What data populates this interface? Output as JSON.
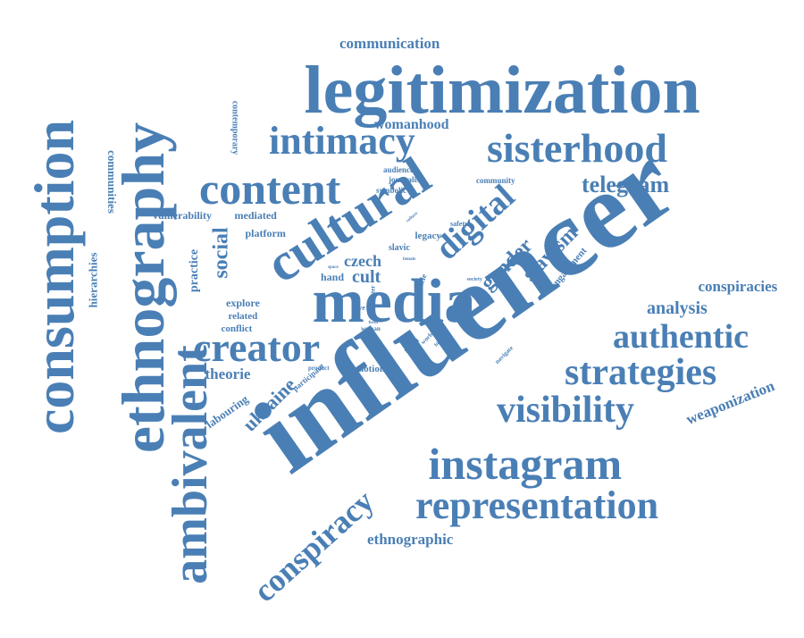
{
  "word_cloud": {
    "text_color": "#4a7fb5",
    "background": "#ffffff",
    "words": [
      {
        "text": "influencer",
        "weight": 1.0,
        "orientation": "diagonal-up"
      },
      {
        "text": "legitimization",
        "weight": 0.86,
        "orientation": "horizontal"
      },
      {
        "text": "media",
        "weight": 0.78,
        "orientation": "horizontal"
      },
      {
        "text": "ethnography",
        "weight": 0.76,
        "orientation": "vertical-up"
      },
      {
        "text": "consumption",
        "weight": 0.74,
        "orientation": "vertical-up"
      },
      {
        "text": "cultural",
        "weight": 0.7,
        "orientation": "diagonal-up"
      },
      {
        "text": "ambivalent",
        "weight": 0.7,
        "orientation": "vertical-up"
      },
      {
        "text": "content",
        "weight": 0.62,
        "orientation": "horizontal"
      },
      {
        "text": "instagram",
        "weight": 0.6,
        "orientation": "horizontal"
      },
      {
        "text": "creator",
        "weight": 0.58,
        "orientation": "horizontal"
      },
      {
        "text": "sisterhood",
        "weight": 0.56,
        "orientation": "horizontal"
      },
      {
        "text": "intimacy",
        "weight": 0.54,
        "orientation": "horizontal"
      },
      {
        "text": "representation",
        "weight": 0.52,
        "orientation": "horizontal"
      },
      {
        "text": "visibility",
        "weight": 0.5,
        "orientation": "horizontal"
      },
      {
        "text": "strategies",
        "weight": 0.5,
        "orientation": "horizontal"
      },
      {
        "text": "authentic",
        "weight": 0.46,
        "orientation": "horizontal"
      },
      {
        "text": "digital",
        "weight": 0.46,
        "orientation": "diagonal-up"
      },
      {
        "text": "conspiracy",
        "weight": 0.44,
        "orientation": "diagonal-up"
      },
      {
        "text": "telegram",
        "weight": 0.32,
        "orientation": "horizontal"
      },
      {
        "text": "social",
        "weight": 0.3,
        "orientation": "vertical-up"
      },
      {
        "text": "gender",
        "weight": 0.28,
        "orientation": "diagonal-up"
      },
      {
        "text": "slavism",
        "weight": 0.28,
        "orientation": "diagonal-up"
      },
      {
        "text": "ukraine",
        "weight": 0.26,
        "orientation": "diagonal-up"
      },
      {
        "text": "cult",
        "weight": 0.22,
        "orientation": "horizontal"
      },
      {
        "text": "czech",
        "weight": 0.2,
        "orientation": "horizontal"
      },
      {
        "text": "analysis",
        "weight": 0.24,
        "orientation": "horizontal"
      },
      {
        "text": "conspiracies",
        "weight": 0.2,
        "orientation": "horizontal"
      },
      {
        "text": "weaponization",
        "weight": 0.2,
        "orientation": "diagonal-up"
      },
      {
        "text": "communication",
        "weight": 0.2,
        "orientation": "horizontal"
      },
      {
        "text": "ethnographic",
        "weight": 0.2,
        "orientation": "horizontal"
      },
      {
        "text": "theorie",
        "weight": 0.2,
        "orientation": "horizontal"
      },
      {
        "text": "womanhood",
        "weight": 0.18,
        "orientation": "horizontal"
      },
      {
        "text": "practice",
        "weight": 0.18,
        "orientation": "vertical-up"
      },
      {
        "text": "communities",
        "weight": 0.16,
        "orientation": "vertical-down"
      },
      {
        "text": "hierarchies",
        "weight": 0.16,
        "orientation": "vertical-up"
      },
      {
        "text": "labouring",
        "weight": 0.14,
        "orientation": "diagonal-up"
      },
      {
        "text": "engagement",
        "weight": 0.12,
        "orientation": "diagonal-up"
      },
      {
        "text": "vulnerability",
        "weight": 0.14,
        "orientation": "horizontal"
      },
      {
        "text": "mediated",
        "weight": 0.14,
        "orientation": "horizontal"
      },
      {
        "text": "platform",
        "weight": 0.14,
        "orientation": "horizontal"
      },
      {
        "text": "explore",
        "weight": 0.14,
        "orientation": "horizontal"
      },
      {
        "text": "related",
        "weight": 0.13,
        "orientation": "horizontal"
      },
      {
        "text": "conflict",
        "weight": 0.13,
        "orientation": "horizontal"
      },
      {
        "text": "hand",
        "weight": 0.14,
        "orientation": "horizontal"
      },
      {
        "text": "notion",
        "weight": 0.13,
        "orientation": "horizontal"
      },
      {
        "text": "legacy",
        "weight": 0.13,
        "orientation": "horizontal"
      },
      {
        "text": "slavic",
        "weight": 0.12,
        "orientation": "horizontal"
      },
      {
        "text": "contemporary",
        "weight": 0.12,
        "orientation": "vertical-down"
      },
      {
        "text": "participant",
        "weight": 0.1,
        "orientation": "diagonal-up"
      },
      {
        "text": "span",
        "weight": 0.12,
        "orientation": "diagonal-up"
      },
      {
        "text": "community",
        "weight": 0.1,
        "orientation": "horizontal"
      },
      {
        "text": "journalism",
        "weight": 0.1,
        "orientation": "horizontal"
      },
      {
        "text": "audience",
        "weight": 0.1,
        "orientation": "horizontal"
      },
      {
        "text": "symbolic",
        "weight": 0.1,
        "orientation": "horizontal"
      },
      {
        "text": "safety",
        "weight": 0.09,
        "orientation": "horizontal"
      },
      {
        "text": "article",
        "weight": 0.1,
        "orientation": "vertical-up"
      },
      {
        "text": "product",
        "weight": 0.08,
        "orientation": "horizontal"
      },
      {
        "text": "navigate",
        "weight": 0.08,
        "orientation": "diagonal-up"
      },
      {
        "text": "world",
        "weight": 0.08,
        "orientation": "diagonal-up"
      },
      {
        "text": "history",
        "weight": 0.07,
        "orientation": "diagonal-up"
      },
      {
        "text": "society",
        "weight": 0.07,
        "orientation": "horizontal"
      },
      {
        "text": "woman",
        "weight": 0.07,
        "orientation": "horizontal"
      },
      {
        "text": "love",
        "weight": 0.07,
        "orientation": "horizontal"
      },
      {
        "text": "sister",
        "weight": 0.07,
        "orientation": "vertical-up"
      },
      {
        "text": "culture",
        "weight": 0.06,
        "orientation": "diagonal-up"
      },
      {
        "text": "female",
        "weight": 0.06,
        "orientation": "horizontal"
      },
      {
        "text": "space",
        "weight": 0.06,
        "orientation": "horizontal"
      },
      {
        "text": "form",
        "weight": 0.06,
        "orientation": "horizontal"
      }
    ]
  }
}
